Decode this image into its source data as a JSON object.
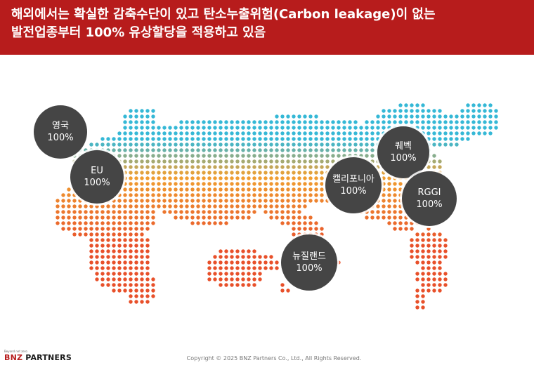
{
  "header": {
    "line1": "해외에서는 확실한 감축수단이 있고 탄소누출위험(Carbon leakage)이 없는",
    "line2": "발전업종부터 100% 유상할당을 적용하고 있음"
  },
  "map_bubbles": [
    {
      "id": "uk",
      "region": "영국",
      "value": "100%"
    },
    {
      "id": "eu",
      "region": "EU",
      "value": "100%"
    },
    {
      "id": "quebec",
      "region": "퀘벡",
      "value": "100%"
    },
    {
      "id": "california",
      "region": "캘리포니아",
      "value": "100%"
    },
    {
      "id": "rggi",
      "region": "RGGI",
      "value": "100%"
    },
    {
      "id": "nz",
      "region": "뉴질랜드",
      "value": "100%"
    }
  ],
  "colors": {
    "header_bg": "#b71c1c",
    "bubble_bg": "#454545",
    "dot_north": "#35b8d6",
    "dot_mid": "#f0a030",
    "dot_south": "#e8502a"
  },
  "footer": {
    "logo_tagline": "Beyond net zero",
    "logo_brand": "BNZ",
    "logo_rest": " PARTNERS",
    "copyright": "Copyright © 2025 BNZ Partners Co., Ltd., All Rights Reserved."
  }
}
